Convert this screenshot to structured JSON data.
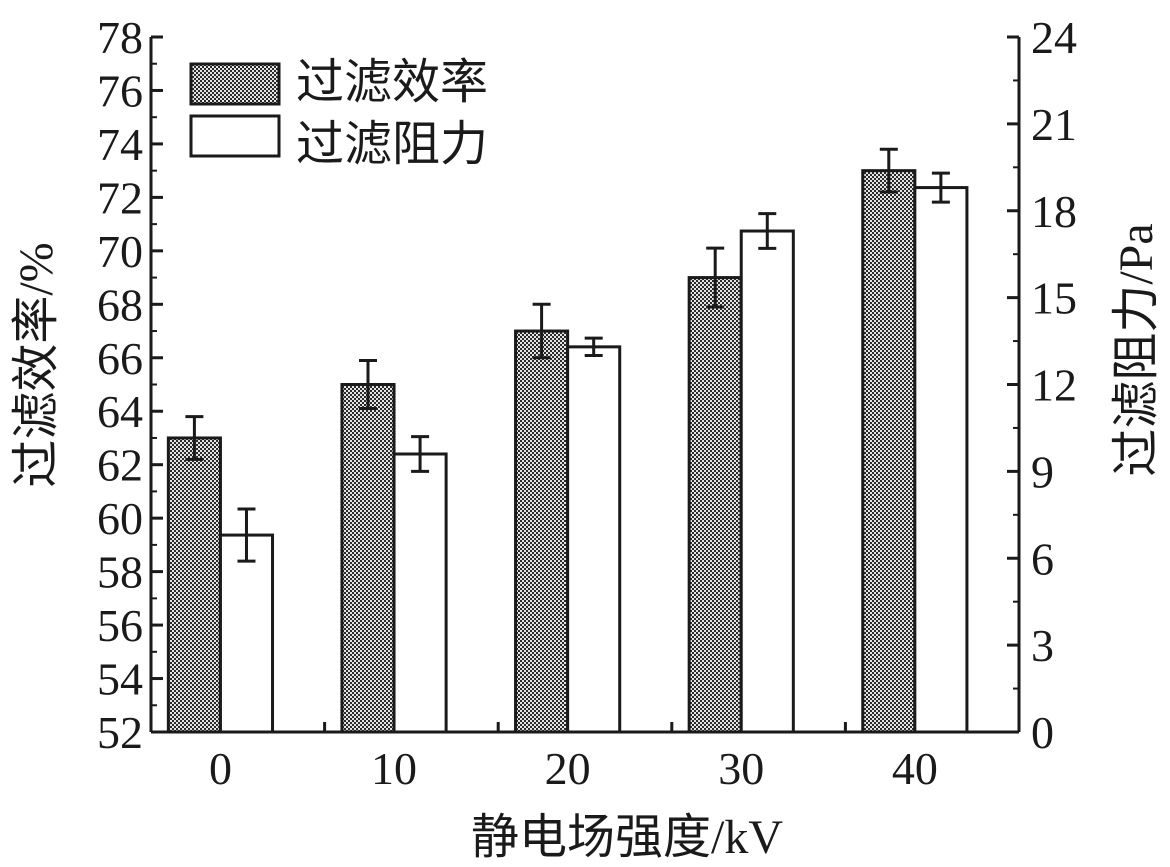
{
  "chart_data": {
    "type": "bar",
    "categories": [
      "0",
      "10",
      "20",
      "30",
      "40"
    ],
    "xlabel": "静电场强度/kV",
    "y_left": {
      "label": "过滤效率/%",
      "range": [
        52,
        78
      ],
      "ticks": [
        "52",
        "54",
        "56",
        "58",
        "60",
        "62",
        "64",
        "66",
        "68",
        "70",
        "72",
        "74",
        "76",
        "78"
      ]
    },
    "y_right": {
      "label": "过滤阻力/Pa",
      "range": [
        0,
        24
      ],
      "ticks": [
        "0",
        "3",
        "6",
        "9",
        "12",
        "15",
        "18",
        "21",
        "24"
      ]
    },
    "series": [
      {
        "name": "过滤效率",
        "axis": "left",
        "fill": "checkered-gray",
        "values": [
          63.0,
          65.0,
          67.0,
          69.0,
          73.0
        ],
        "error": [
          0.8,
          0.9,
          1.0,
          1.1,
          0.8
        ]
      },
      {
        "name": "过滤阻力",
        "axis": "right",
        "fill": "white",
        "values": [
          6.8,
          9.6,
          13.3,
          17.3,
          18.8
        ],
        "error": [
          0.9,
          0.6,
          0.3,
          0.6,
          0.5
        ]
      }
    ],
    "legend_position": "top-left",
    "grid": false
  }
}
